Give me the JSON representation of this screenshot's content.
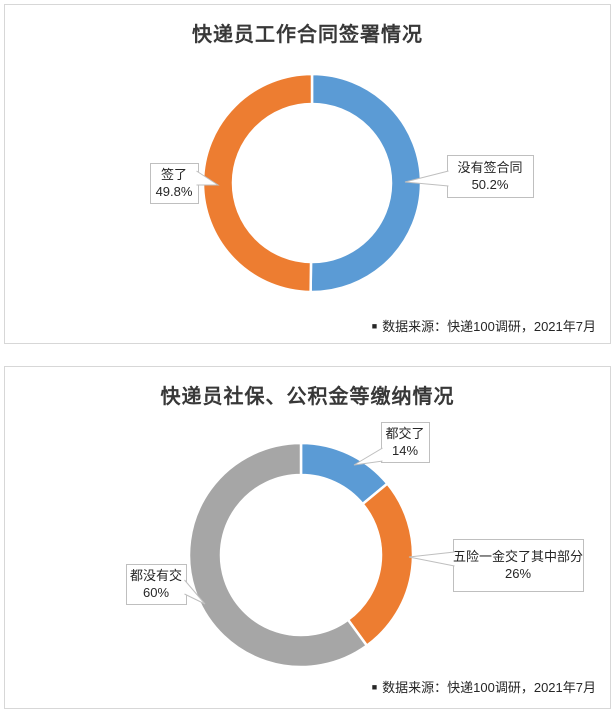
{
  "colors": {
    "blue": "#5B9BD5",
    "orange": "#ED7D31",
    "gray": "#A6A6A6",
    "panel_border": "#D7D7D7",
    "callout_border": "#BFBFBF",
    "title_text": "#383838",
    "body_text": "#262626",
    "slice_gap": "#FFFFFF"
  },
  "chart_data": [
    {
      "type": "pie",
      "subtype": "donut",
      "title": "快递员工作合同签署情况",
      "start_angle_deg": 0,
      "direction": "clockwise",
      "inner_radius_ratio": 0.72,
      "legend": "none",
      "labels": "callout",
      "segments": [
        {
          "label": "没有签合同",
          "value": 50.2,
          "display_value": "50.2%",
          "color": "#5B9BD5",
          "callout_side": "right"
        },
        {
          "label": "签了",
          "value": 49.8,
          "display_value": "49.8%",
          "color": "#ED7D31",
          "callout_side": "left"
        }
      ],
      "source_bullet": "■",
      "source_note": "数据来源：快递100调研，2021年7月"
    },
    {
      "type": "pie",
      "subtype": "donut",
      "title": "快递员社保、公积金等缴纳情况",
      "start_angle_deg": 0,
      "direction": "clockwise",
      "inner_radius_ratio": 0.72,
      "legend": "none",
      "labels": "callout",
      "segments": [
        {
          "label": "都交了",
          "value": 14,
          "display_value": "14%",
          "color": "#5B9BD5",
          "callout_side": "top-right"
        },
        {
          "label": "五险一金交了其中部分",
          "value": 26,
          "display_value": "26%",
          "color": "#ED7D31",
          "callout_side": "right"
        },
        {
          "label": "都没有交",
          "value": 60,
          "display_value": "60%",
          "color": "#A6A6A6",
          "callout_side": "left"
        }
      ],
      "source_bullet": "■",
      "source_note": "数据来源：快递100调研，2021年7月"
    }
  ]
}
